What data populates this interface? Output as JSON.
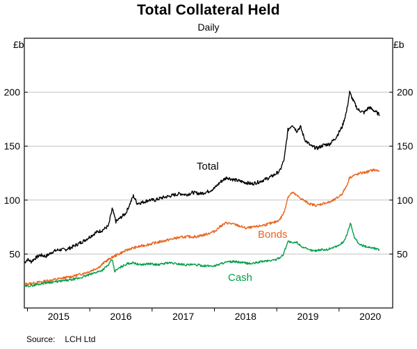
{
  "header": {
    "title": "Total Collateral Held",
    "subtitle": "Daily"
  },
  "axes": {
    "unit_left": "£b",
    "unit_right": "£b"
  },
  "footer": {
    "source_label": "Source:",
    "source_value": "LCH Ltd"
  },
  "chart_data": {
    "type": "line",
    "title": "Total Collateral Held",
    "subtitle": "Daily",
    "ylabel": "£b",
    "ylim": [
      0,
      250
    ],
    "yticks": [
      50,
      100,
      150,
      200
    ],
    "xlim": [
      2014.95,
      2020.86
    ],
    "xticks": [
      2015,
      2016,
      2017,
      2018,
      2019,
      2020
    ],
    "xtick_labels": [
      "2015",
      "2016",
      "2017",
      "2018",
      "2019",
      "2020"
    ],
    "grid": true,
    "legend_position": "inline-labels",
    "source": "LCH Ltd",
    "series": [
      {
        "name": "Total",
        "color": "#000000",
        "points": [
          [
            2014.95,
            42
          ],
          [
            2015.0,
            45
          ],
          [
            2015.06,
            43
          ],
          [
            2015.12,
            46
          ],
          [
            2015.2,
            49
          ],
          [
            2015.3,
            48
          ],
          [
            2015.4,
            52
          ],
          [
            2015.5,
            54
          ],
          [
            2015.6,
            54
          ],
          [
            2015.7,
            56
          ],
          [
            2015.8,
            59
          ],
          [
            2015.9,
            62
          ],
          [
            2016.0,
            66
          ],
          [
            2016.1,
            70
          ],
          [
            2016.2,
            72
          ],
          [
            2016.3,
            76
          ],
          [
            2016.36,
            92
          ],
          [
            2016.42,
            80
          ],
          [
            2016.5,
            84
          ],
          [
            2016.58,
            88
          ],
          [
            2016.64,
            96
          ],
          [
            2016.7,
            104
          ],
          [
            2016.76,
            97
          ],
          [
            2016.85,
            98
          ],
          [
            2016.95,
            100
          ],
          [
            2017.05,
            100
          ],
          [
            2017.15,
            102
          ],
          [
            2017.3,
            104
          ],
          [
            2017.45,
            106
          ],
          [
            2017.55,
            105
          ],
          [
            2017.65,
            107
          ],
          [
            2017.78,
            106
          ],
          [
            2017.9,
            108
          ],
          [
            2018.0,
            111
          ],
          [
            2018.1,
            117
          ],
          [
            2018.2,
            121
          ],
          [
            2018.3,
            119
          ],
          [
            2018.45,
            117
          ],
          [
            2018.6,
            115
          ],
          [
            2018.72,
            117
          ],
          [
            2018.85,
            120
          ],
          [
            2018.95,
            123
          ],
          [
            2019.05,
            127
          ],
          [
            2019.12,
            138
          ],
          [
            2019.18,
            165
          ],
          [
            2019.25,
            170
          ],
          [
            2019.32,
            164
          ],
          [
            2019.38,
            168
          ],
          [
            2019.45,
            156
          ],
          [
            2019.55,
            150
          ],
          [
            2019.65,
            148
          ],
          [
            2019.75,
            151
          ],
          [
            2019.85,
            152
          ],
          [
            2019.95,
            158
          ],
          [
            2020.05,
            168
          ],
          [
            2020.12,
            182
          ],
          [
            2020.17,
            200
          ],
          [
            2020.22,
            193
          ],
          [
            2020.3,
            184
          ],
          [
            2020.4,
            181
          ],
          [
            2020.48,
            186
          ],
          [
            2020.56,
            183
          ],
          [
            2020.65,
            179
          ]
        ]
      },
      {
        "name": "Bonds",
        "color": "#E8641B",
        "points": [
          [
            2014.95,
            22
          ],
          [
            2015.1,
            23
          ],
          [
            2015.3,
            25
          ],
          [
            2015.5,
            27
          ],
          [
            2015.7,
            29
          ],
          [
            2015.9,
            32
          ],
          [
            2016.0,
            34
          ],
          [
            2016.15,
            38
          ],
          [
            2016.25,
            43
          ],
          [
            2016.36,
            47
          ],
          [
            2016.5,
            51
          ],
          [
            2016.65,
            55
          ],
          [
            2016.8,
            57
          ],
          [
            2016.95,
            59
          ],
          [
            2017.1,
            61
          ],
          [
            2017.25,
            63
          ],
          [
            2017.4,
            65
          ],
          [
            2017.55,
            66
          ],
          [
            2017.7,
            66
          ],
          [
            2017.85,
            68
          ],
          [
            2018.0,
            71
          ],
          [
            2018.1,
            76
          ],
          [
            2018.2,
            79
          ],
          [
            2018.35,
            77
          ],
          [
            2018.5,
            74
          ],
          [
            2018.65,
            75
          ],
          [
            2018.8,
            77
          ],
          [
            2018.95,
            79
          ],
          [
            2019.05,
            82
          ],
          [
            2019.12,
            89
          ],
          [
            2019.18,
            103
          ],
          [
            2019.25,
            107
          ],
          [
            2019.35,
            103
          ],
          [
            2019.45,
            99
          ],
          [
            2019.55,
            96
          ],
          [
            2019.65,
            95
          ],
          [
            2019.75,
            97
          ],
          [
            2019.85,
            98
          ],
          [
            2019.95,
            101
          ],
          [
            2020.05,
            106
          ],
          [
            2020.12,
            113
          ],
          [
            2020.17,
            121
          ],
          [
            2020.25,
            123
          ],
          [
            2020.35,
            125
          ],
          [
            2020.45,
            126
          ],
          [
            2020.55,
            128
          ],
          [
            2020.65,
            127
          ]
        ]
      },
      {
        "name": "Cash",
        "color": "#009E49",
        "points": [
          [
            2014.95,
            20
          ],
          [
            2015.1,
            21
          ],
          [
            2015.25,
            23
          ],
          [
            2015.4,
            24
          ],
          [
            2015.55,
            25
          ],
          [
            2015.7,
            26
          ],
          [
            2015.85,
            28
          ],
          [
            2016.0,
            31
          ],
          [
            2016.1,
            33
          ],
          [
            2016.2,
            35
          ],
          [
            2016.3,
            40
          ],
          [
            2016.36,
            45
          ],
          [
            2016.4,
            34
          ],
          [
            2016.5,
            38
          ],
          [
            2016.6,
            41
          ],
          [
            2016.7,
            42
          ],
          [
            2016.8,
            40
          ],
          [
            2016.95,
            41
          ],
          [
            2017.1,
            40
          ],
          [
            2017.25,
            42
          ],
          [
            2017.4,
            41
          ],
          [
            2017.55,
            40
          ],
          [
            2017.7,
            40
          ],
          [
            2017.85,
            39
          ],
          [
            2018.0,
            39
          ],
          [
            2018.15,
            42
          ],
          [
            2018.3,
            43
          ],
          [
            2018.45,
            42
          ],
          [
            2018.6,
            41
          ],
          [
            2018.75,
            43
          ],
          [
            2018.9,
            44
          ],
          [
            2019.0,
            45
          ],
          [
            2019.1,
            49
          ],
          [
            2019.18,
            62
          ],
          [
            2019.25,
            60
          ],
          [
            2019.32,
            61
          ],
          [
            2019.4,
            57
          ],
          [
            2019.5,
            54
          ],
          [
            2019.6,
            53
          ],
          [
            2019.7,
            54
          ],
          [
            2019.8,
            54
          ],
          [
            2019.9,
            56
          ],
          [
            2020.0,
            58
          ],
          [
            2020.08,
            62
          ],
          [
            2020.14,
            70
          ],
          [
            2020.18,
            79
          ],
          [
            2020.24,
            66
          ],
          [
            2020.32,
            59
          ],
          [
            2020.42,
            57
          ],
          [
            2020.52,
            56
          ],
          [
            2020.65,
            54
          ]
        ]
      }
    ]
  }
}
